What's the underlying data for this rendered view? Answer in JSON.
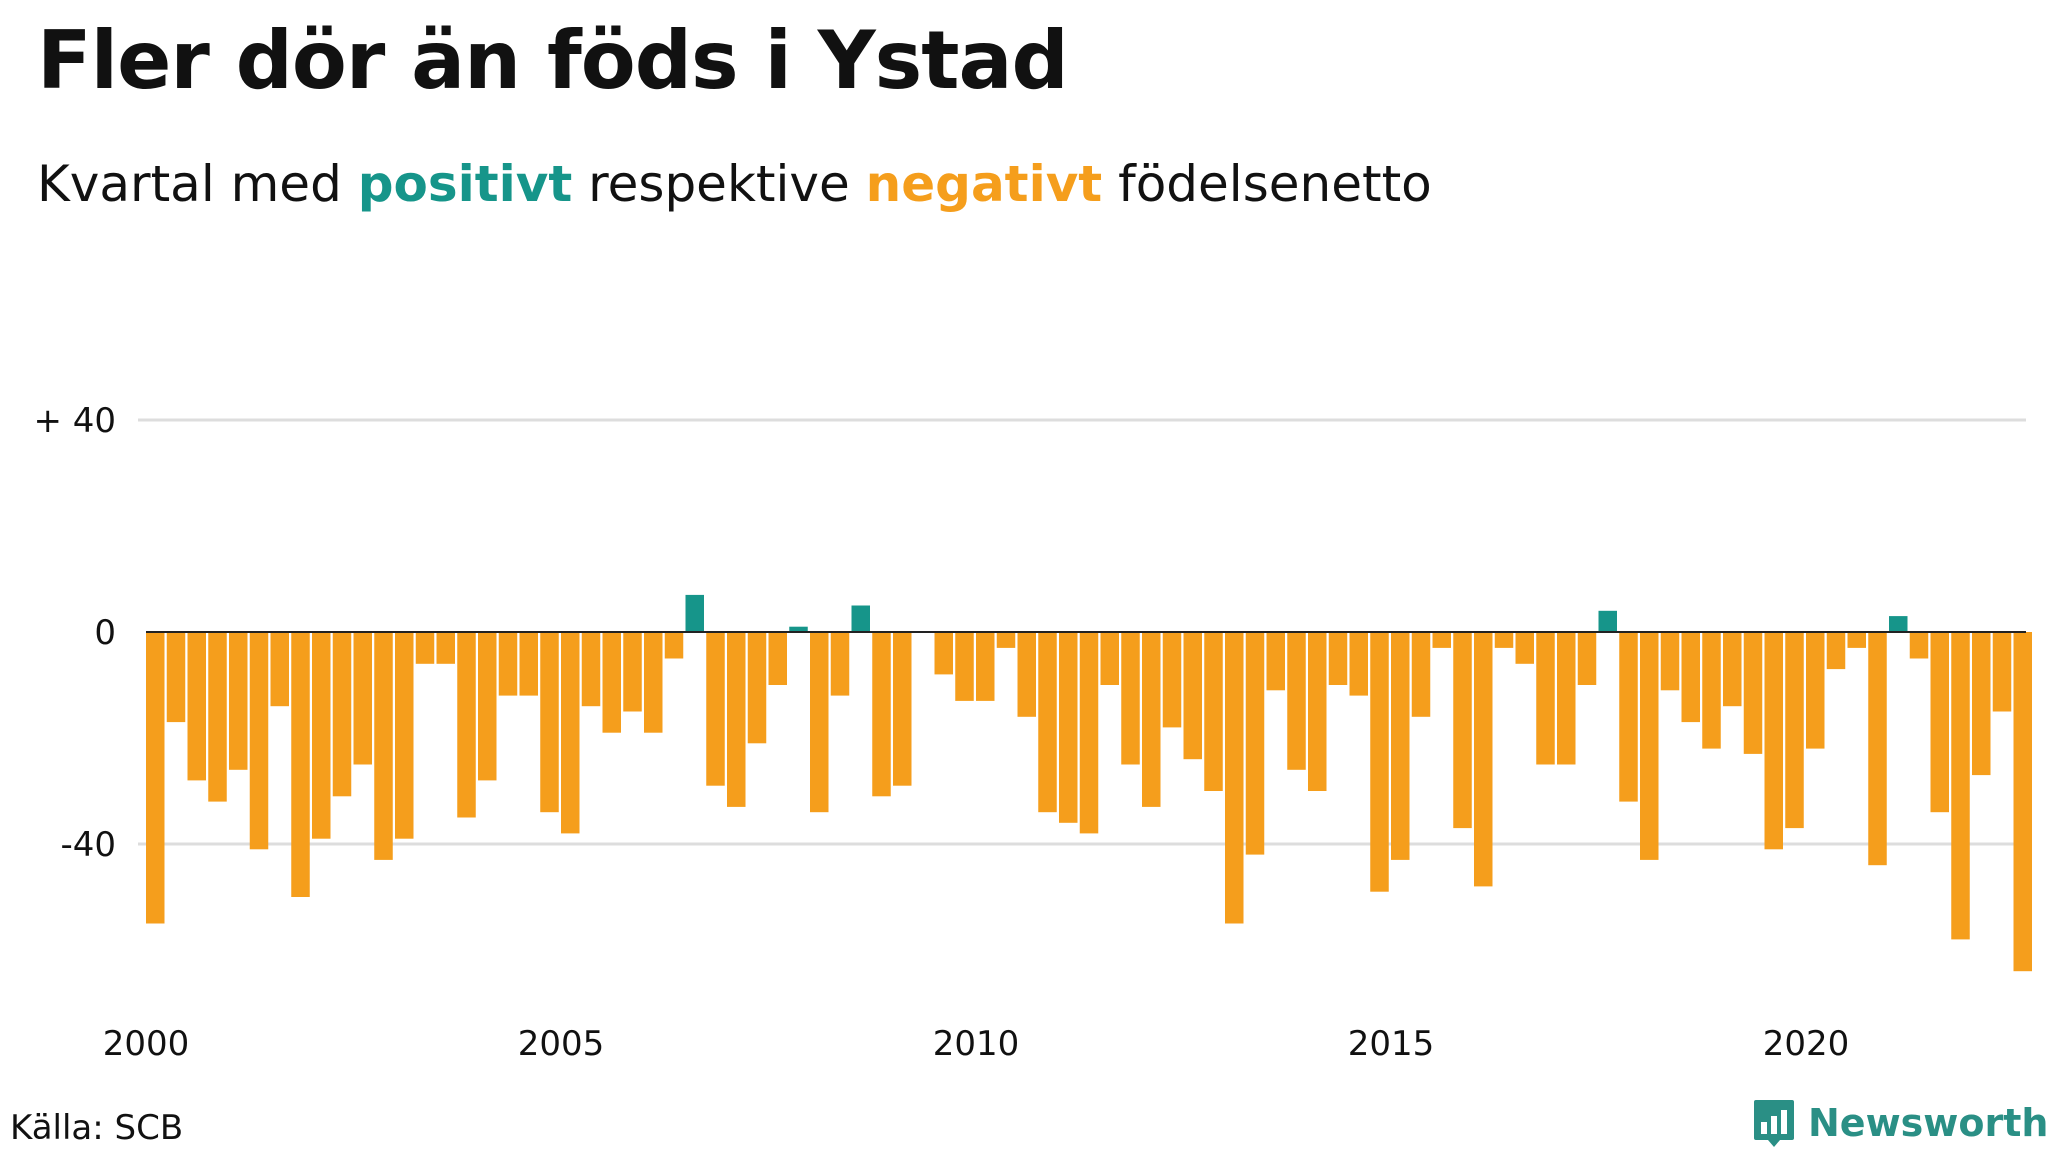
{
  "title": "Fler dör än föds i Ystad",
  "subtitle": {
    "prefix": "Kvartal med ",
    "positive": "positivt",
    "middle": " respektive ",
    "negative": "negativt",
    "suffix": " födelsenetto"
  },
  "source": "Källa: SCB",
  "brand": "Newsworthy",
  "colors": {
    "positive": "#16958a",
    "negative": "#f59e1c",
    "grid": "#dddddd",
    "baseline": "#222222",
    "brand": "#2a8f85"
  },
  "chart_data": {
    "type": "bar",
    "title": "Fler dör än föds i Ystad",
    "xlabel": "",
    "ylabel": "",
    "ylim": [
      -65,
      52
    ],
    "grid": true,
    "y_ticks": [
      {
        "value": 40,
        "label": "+ 40"
      },
      {
        "value": 0,
        "label": "0"
      },
      {
        "value": -40,
        "label": "-40"
      }
    ],
    "x_ticks": [
      {
        "year": 2000,
        "label": "2000"
      },
      {
        "year": 2005,
        "label": "2005"
      },
      {
        "year": 2010,
        "label": "2010"
      },
      {
        "year": 2015,
        "label": "2015"
      },
      {
        "year": 2020,
        "label": "2020"
      }
    ],
    "categories": [
      "2000K1",
      "2000K2",
      "2000K3",
      "2000K4",
      "2001K1",
      "2001K2",
      "2001K3",
      "2001K4",
      "2002K1",
      "2002K2",
      "2002K3",
      "2002K4",
      "2003K1",
      "2003K2",
      "2003K3",
      "2003K4",
      "2004K1",
      "2004K2",
      "2004K3",
      "2004K4",
      "2005K1",
      "2005K2",
      "2005K3",
      "2005K4",
      "2006K1",
      "2006K2",
      "2006K3",
      "2006K4",
      "2007K1",
      "2007K2",
      "2007K3",
      "2007K4",
      "2008K1",
      "2008K2",
      "2008K3",
      "2008K4",
      "2009K1",
      "2009K2",
      "2009K3",
      "2009K4",
      "2010K1",
      "2010K2",
      "2010K3",
      "2010K4",
      "2011K1",
      "2011K2",
      "2011K3",
      "2011K4",
      "2012K1",
      "2012K2",
      "2012K3",
      "2012K4",
      "2013K1",
      "2013K2",
      "2013K3",
      "2013K4",
      "2014K1",
      "2014K2",
      "2014K3",
      "2014K4",
      "2015K1",
      "2015K2",
      "2015K3",
      "2015K4",
      "2016K1",
      "2016K2",
      "2016K3",
      "2016K4",
      "2017K1",
      "2017K2",
      "2017K3",
      "2017K4",
      "2018K1",
      "2018K2",
      "2018K3",
      "2018K4",
      "2019K1",
      "2019K2",
      "2019K3",
      "2019K4",
      "2020K1",
      "2020K2",
      "2020K3",
      "2020K4",
      "2021K1",
      "2021K2",
      "2021K3",
      "2021K4",
      "2022K1",
      "2022K2",
      "2022K3",
      "2022K4"
    ],
    "values": [
      -55,
      -17,
      -28,
      -32,
      -26,
      -41,
      -14,
      -50,
      -39,
      -31,
      -25,
      -43,
      -39,
      -6,
      -6,
      -35,
      -28,
      -12,
      -12,
      -34,
      -38,
      -14,
      -19,
      -15,
      -19,
      -5,
      7,
      -29,
      -33,
      -21,
      -10,
      1,
      -34,
      -12,
      5,
      -31,
      -29,
      0,
      -8,
      -13,
      -13,
      -3,
      -16,
      -34,
      -36,
      -38,
      -10,
      -25,
      -33,
      -18,
      -24,
      -30,
      -55,
      -42,
      -11,
      -26,
      -30,
      -10,
      -12,
      -49,
      -43,
      -16,
      -3,
      -37,
      -48,
      -3,
      -6,
      -25,
      -25,
      -10,
      4,
      -32,
      -43,
      -11,
      -17,
      -22,
      -14,
      -23,
      -41,
      -37,
      -22,
      -7,
      -3,
      -44,
      3,
      -5,
      -34,
      -58,
      -27,
      -15,
      -64,
      0
    ]
  }
}
